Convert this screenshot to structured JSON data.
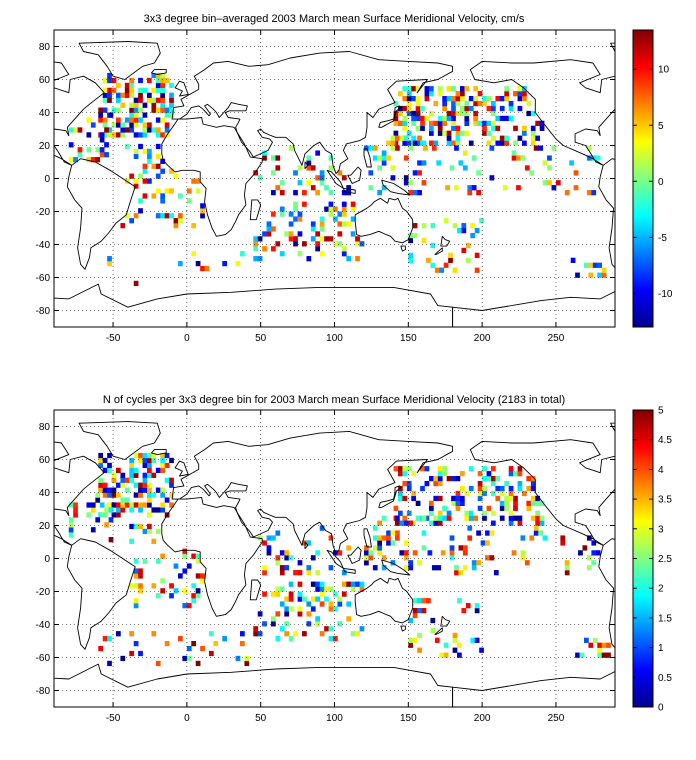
{
  "panels": [
    {
      "title": "3x3 degree bin–averaged 2003 March mean Surface Meridional Velocity, cm/s",
      "colorbar": {
        "min": -13,
        "max": 13.5,
        "ticks": [
          -10,
          -5,
          0,
          5,
          10
        ]
      },
      "seed": 7
    },
    {
      "title": "N of cycles per 3x3 degree bin for 2003 March mean Surface Meridional Velocity (2183 in total)",
      "colorbar": {
        "min": 0,
        "max": 5,
        "ticks": [
          0,
          0.5,
          1,
          1.5,
          2,
          2.5,
          3,
          3.5,
          4,
          4.5,
          5
        ]
      },
      "seed": 23
    }
  ],
  "map": {
    "lon_range": [
      -90,
      290
    ],
    "lat_range": [
      -90,
      90
    ],
    "x_ticks": [
      -50,
      0,
      50,
      100,
      150,
      200,
      250
    ],
    "y_ticks": [
      -80,
      -60,
      -40,
      -20,
      0,
      20,
      40,
      60,
      80
    ],
    "grid": "dotted",
    "bin_size_deg": 3
  },
  "sampling_regions": [
    {
      "lon": [
        -60,
        -10
      ],
      "lat": [
        25,
        62
      ],
      "density": 0.5
    },
    {
      "lon": [
        -80,
        -50
      ],
      "lat": [
        10,
        40
      ],
      "density": 0.2
    },
    {
      "lon": [
        -45,
        10
      ],
      "lat": [
        -30,
        20
      ],
      "density": 0.18
    },
    {
      "lon": [
        140,
        240
      ],
      "lat": [
        20,
        55
      ],
      "density": 0.42
    },
    {
      "lon": [
        120,
        160
      ],
      "lat": [
        -10,
        25
      ],
      "density": 0.28
    },
    {
      "lon": [
        160,
        280
      ],
      "lat": [
        -10,
        20
      ],
      "density": 0.12
    },
    {
      "lon": [
        45,
        110
      ],
      "lat": [
        -10,
        20
      ],
      "density": 0.2
    },
    {
      "lon": [
        45,
        120
      ],
      "lat": [
        -50,
        -15
      ],
      "density": 0.25
    },
    {
      "lon": [
        150,
        200
      ],
      "lat": [
        -60,
        -25
      ],
      "density": 0.18
    },
    {
      "lon": [
        -60,
        40
      ],
      "lat": [
        -65,
        -45
      ],
      "density": 0.08
    },
    {
      "lon": [
        260,
        290
      ],
      "lat": [
        -60,
        -50
      ],
      "density": 0.3
    }
  ]
}
